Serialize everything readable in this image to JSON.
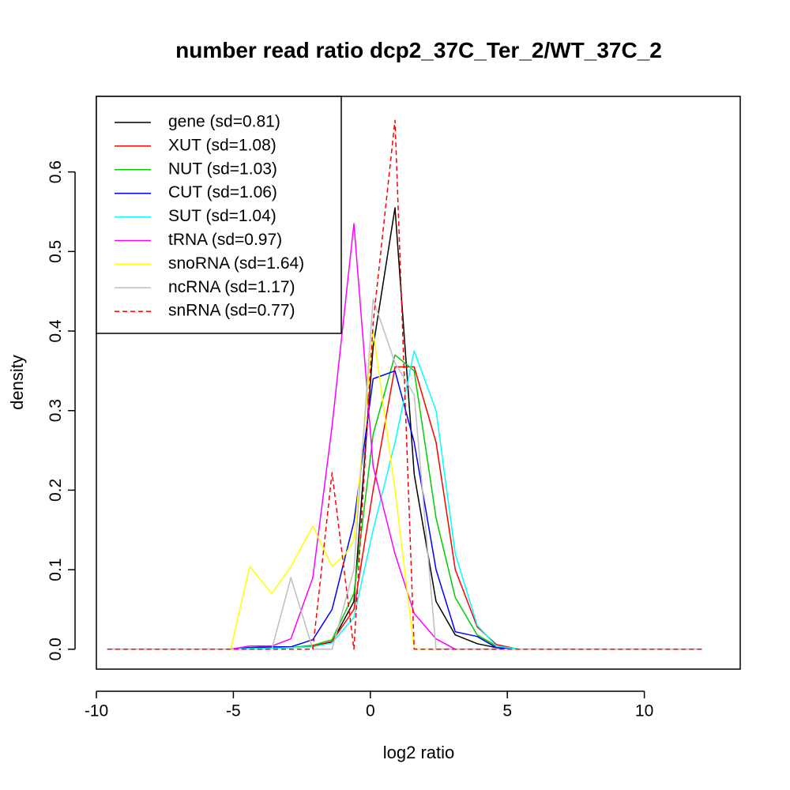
{
  "chart_data": {
    "type": "line",
    "title": "number read ratio dcp2_37C_Ter_2/WT_37C_2",
    "xlabel": "log2 ratio",
    "ylabel": "density",
    "xlim": [
      -10,
      13.5
    ],
    "ylim": [
      -0.025,
      0.695
    ],
    "xticks": [
      -10,
      -5,
      0,
      5,
      10
    ],
    "yticks": [
      0.0,
      0.1,
      0.2,
      0.3,
      0.4,
      0.5,
      0.6
    ],
    "grid": false,
    "legend_position": "top-left",
    "series": [
      {
        "name": "gene (sd=0.81)",
        "color": "#000000",
        "dash": "solid",
        "x": [
          -9.6,
          -5.1,
          -4.4,
          -3.6,
          -2.9,
          -2.1,
          -1.4,
          -0.6,
          0.1,
          0.9,
          1.6,
          2.4,
          3.1,
          3.9,
          4.6,
          5.4,
          12.1
        ],
        "y": [
          0,
          0,
          0.002,
          0.002,
          0.002,
          0.004,
          0.009,
          0.06,
          0.38,
          0.555,
          0.22,
          0.06,
          0.018,
          0.007,
          0.002,
          0,
          0
        ]
      },
      {
        "name": "XUT (sd=1.08)",
        "color": "#ff0000",
        "dash": "solid",
        "x": [
          -9.6,
          -5.1,
          -4.4,
          -3.6,
          -2.9,
          -2.1,
          -1.4,
          -0.6,
          0.1,
          0.9,
          1.6,
          2.4,
          3.1,
          3.9,
          4.6,
          5.4,
          12.1
        ],
        "y": [
          0,
          0,
          0.001,
          0.002,
          0.002,
          0.004,
          0.01,
          0.05,
          0.2,
          0.355,
          0.355,
          0.26,
          0.1,
          0.028,
          0.006,
          0,
          0
        ]
      },
      {
        "name": "NUT (sd=1.03)",
        "color": "#00cd00",
        "dash": "solid",
        "x": [
          -9.6,
          -5.1,
          -4.4,
          -3.6,
          -2.9,
          -2.1,
          -1.4,
          -0.6,
          0.1,
          0.9,
          1.6,
          2.4,
          3.1,
          3.9,
          4.6,
          5.4,
          12.1
        ],
        "y": [
          0,
          0,
          0.001,
          0.002,
          0.002,
          0.005,
          0.012,
          0.07,
          0.27,
          0.37,
          0.35,
          0.165,
          0.065,
          0.018,
          0.004,
          0,
          0
        ]
      },
      {
        "name": "CUT (sd=1.06)",
        "color": "#0000ff",
        "dash": "solid",
        "x": [
          -9.6,
          -5.1,
          -4.4,
          -3.6,
          -2.9,
          -2.1,
          -1.4,
          -0.6,
          0.1,
          0.9,
          1.6,
          2.4,
          3.1,
          3.9,
          4.6,
          5.4,
          12.1
        ],
        "y": [
          0,
          0,
          0.002,
          0.003,
          0.003,
          0.012,
          0.05,
          0.16,
          0.34,
          0.35,
          0.26,
          0.1,
          0.022,
          0.016,
          0.002,
          0,
          0
        ]
      },
      {
        "name": "SUT (sd=1.04)",
        "color": "#00ffff",
        "dash": "solid",
        "x": [
          -9.6,
          -5.1,
          -4.4,
          -3.6,
          -2.9,
          -2.1,
          -1.4,
          -0.6,
          0.1,
          0.9,
          1.6,
          2.4,
          3.1,
          3.9,
          4.6,
          5.4,
          12.1
        ],
        "y": [
          0,
          0,
          0.001,
          0.001,
          0.002,
          0.003,
          0.008,
          0.04,
          0.15,
          0.26,
          0.375,
          0.3,
          0.12,
          0.03,
          0.004,
          0,
          0
        ]
      },
      {
        "name": "tRNA (sd=0.97)",
        "color": "#ff00ff",
        "dash": "solid",
        "x": [
          -9.6,
          -5.1,
          -4.4,
          -3.6,
          -2.9,
          -2.1,
          -1.4,
          -0.6,
          0.1,
          0.9,
          1.6,
          2.4,
          3.1,
          12.1
        ],
        "y": [
          0,
          0,
          0.004,
          0.004,
          0.013,
          0.09,
          0.28,
          0.535,
          0.23,
          0.12,
          0.045,
          0.013,
          0,
          0
        ]
      },
      {
        "name": "snoRNA (sd=1.64)",
        "color": "#ffff00",
        "dash": "solid",
        "x": [
          -9.6,
          -5.1,
          -4.4,
          -3.6,
          -2.9,
          -2.1,
          -1.4,
          -0.9,
          -0.6,
          0.1,
          0.9,
          1.6,
          12.1
        ],
        "y": [
          0,
          0,
          0.104,
          0.07,
          0.104,
          0.155,
          0.104,
          0.12,
          0.138,
          0.4,
          0.2,
          0,
          0
        ]
      },
      {
        "name": "ncRNA (sd=1.17)",
        "color": "#bebebe",
        "dash": "solid",
        "x": [
          -9.6,
          -5.1,
          -3.6,
          -2.9,
          -2.1,
          -1.4,
          -0.6,
          0.1,
          0.9,
          1.6,
          2.4,
          12.1
        ],
        "y": [
          0,
          0,
          0,
          0.09,
          0,
          0,
          0.1,
          0.44,
          0.36,
          0.32,
          0,
          0
        ]
      },
      {
        "name": "snRNA (sd=0.77)",
        "color": "#ff0000",
        "dash": "dashed",
        "x": [
          -9.6,
          -2.1,
          -1.4,
          -0.6,
          0.1,
          0.9,
          1.6,
          12.1
        ],
        "y": [
          0,
          0,
          0.222,
          0,
          0.41,
          0.665,
          0,
          0
        ]
      }
    ]
  }
}
